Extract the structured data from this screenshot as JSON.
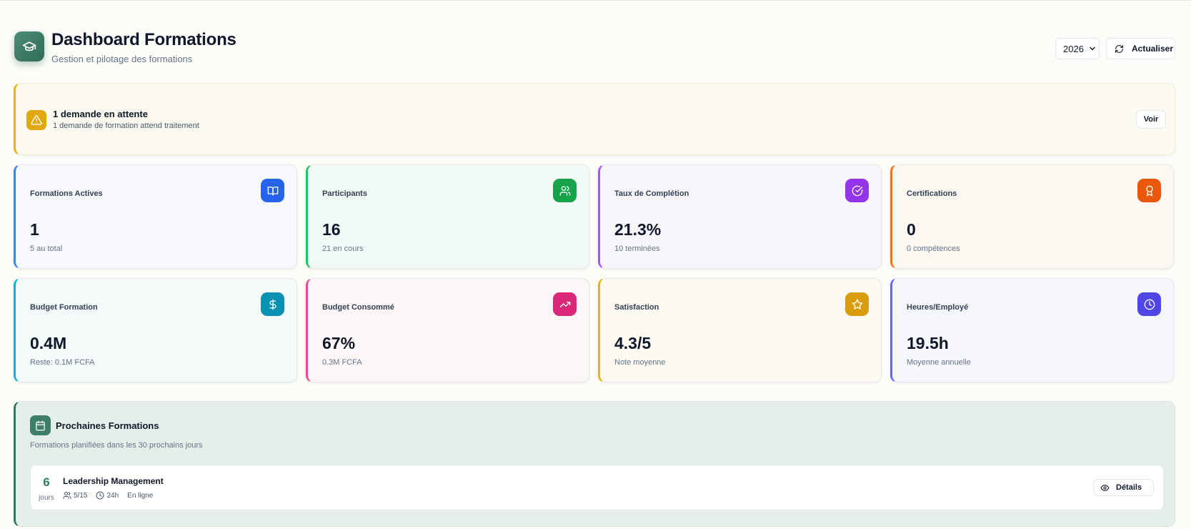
{
  "header": {
    "title": "Dashboard Formations",
    "subtitle": "Gestion et pilotage des formations",
    "year_value": "2026",
    "refresh_label": "Actualiser",
    "logo_icon": "graduation-cap-icon"
  },
  "alert": {
    "title": "1 demande en attente",
    "description": "1 demande de formation attend traitement",
    "button_label": "Voir",
    "icon": "warning-triangle-icon",
    "accent_color": "#eab308"
  },
  "stats": [
    {
      "label": "Formations Actives",
      "value": "1",
      "sub": "5 au total",
      "icon": "book-open-icon",
      "color": "#2563eb"
    },
    {
      "label": "Participants",
      "value": "16",
      "sub": "21 en cours",
      "icon": "users-icon",
      "color": "#16a34a"
    },
    {
      "label": "Taux de Complétion",
      "value": "21.3%",
      "sub": "10 terminées",
      "icon": "check-circle-icon",
      "color": "#9333ea"
    },
    {
      "label": "Certifications",
      "value": "0",
      "sub": "0 compétences",
      "icon": "award-icon",
      "color": "#ea580c"
    },
    {
      "label": "Budget Formation",
      "value": "0.4M",
      "sub": "Reste: 0.1M FCFA",
      "icon": "dollar-icon",
      "color": "#0891b2"
    },
    {
      "label": "Budget Consommé",
      "value": "67%",
      "sub": "0.3M FCFA",
      "icon": "trending-up-icon",
      "color": "#db2777"
    },
    {
      "label": "Satisfaction",
      "value": "4.3/5",
      "sub": "Note moyenne",
      "icon": "star-icon",
      "color": "#ca8a04"
    },
    {
      "label": "Heures/Employé",
      "value": "19.5h",
      "sub": "Moyenne annuelle",
      "icon": "clock-icon",
      "color": "#4f46e5"
    }
  ],
  "upcoming": {
    "title": "Prochaines Formations",
    "description": "Formations planifiées dans les 30 prochains jours",
    "icon": "calendar-icon",
    "items": [
      {
        "days": "6",
        "days_label": "jours",
        "name": "Leadership Management",
        "participants": "5/15",
        "duration": "24h",
        "mode": "En ligne",
        "details_label": "Détails"
      }
    ]
  }
}
